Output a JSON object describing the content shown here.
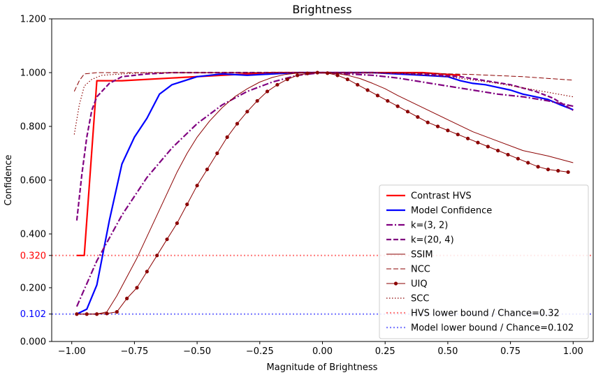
{
  "chart_data": {
    "type": "line",
    "title": "Brightness",
    "xlabel": "Magnitude of Brightness",
    "ylabel": "Confidence",
    "xlim": [
      -1.08,
      1.08
    ],
    "ylim": [
      0.0,
      1.2
    ],
    "xticks": [
      -1.0,
      -0.75,
      -0.5,
      -0.25,
      0.0,
      0.25,
      0.5,
      0.75,
      1.0
    ],
    "xtick_labels": [
      "−1.00",
      "−0.75",
      "−0.50",
      "−0.25",
      "0.00",
      "0.25",
      "0.50",
      "0.75",
      "1.00"
    ],
    "yticks": [
      0.0,
      0.102,
      0.2,
      0.32,
      0.4,
      0.6,
      0.8,
      1.0,
      1.2
    ],
    "ytick_labels": [
      "0.000",
      "0.102",
      "0.200",
      "0.320",
      "0.400",
      "0.600",
      "0.800",
      "1.000",
      "1.200"
    ],
    "ytick_colors": [
      "#000000",
      "#0000ff",
      "#000000",
      "#ff0000",
      "#000000",
      "#000000",
      "#000000",
      "#000000",
      "#000000"
    ],
    "grid": false,
    "legend_position": "bottom-right",
    "series": [
      {
        "name": "Contrast HVS",
        "color": "#ff0000",
        "style": "solid",
        "width": 2.2,
        "x": [
          -0.98,
          -0.95,
          -0.9,
          -0.88,
          -0.8,
          -0.6,
          -0.4,
          -0.2,
          0.0,
          0.2,
          0.4,
          0.55
        ],
        "y": [
          0.32,
          0.32,
          0.97,
          0.97,
          0.97,
          0.98,
          0.99,
          1.0,
          1.0,
          1.0,
          1.0,
          0.99
        ]
      },
      {
        "name": "Model Confidence",
        "color": "#0000ff",
        "style": "solid",
        "width": 2.2,
        "x": [
          -0.98,
          -0.94,
          -0.9,
          -0.85,
          -0.8,
          -0.75,
          -0.7,
          -0.65,
          -0.6,
          -0.55,
          -0.5,
          -0.45,
          -0.4,
          -0.3,
          -0.2,
          -0.1,
          0.0,
          0.1,
          0.2,
          0.3,
          0.4,
          0.5,
          0.55,
          0.6,
          0.65,
          0.7,
          0.75,
          0.8,
          0.85,
          0.9,
          0.95,
          1.0
        ],
        "y": [
          0.102,
          0.12,
          0.21,
          0.45,
          0.66,
          0.76,
          0.83,
          0.92,
          0.955,
          0.97,
          0.985,
          0.99,
          0.995,
          0.99,
          0.995,
          1.0,
          1.0,
          1.0,
          1.0,
          0.995,
          0.99,
          0.985,
          0.97,
          0.96,
          0.955,
          0.945,
          0.935,
          0.92,
          0.91,
          0.9,
          0.88,
          0.862
        ]
      },
      {
        "name": "k=(3, 2)",
        "color": "#800080",
        "style": "dashdot",
        "width": 2.2,
        "x": [
          -0.98,
          -0.9,
          -0.8,
          -0.7,
          -0.6,
          -0.5,
          -0.4,
          -0.3,
          -0.2,
          -0.1,
          0.0,
          0.1,
          0.2,
          0.3,
          0.4,
          0.5,
          0.6,
          0.7,
          0.8,
          0.9,
          1.0
        ],
        "y": [
          0.13,
          0.3,
          0.47,
          0.61,
          0.72,
          0.81,
          0.88,
          0.93,
          0.965,
          0.99,
          1.0,
          0.995,
          0.99,
          0.98,
          0.965,
          0.95,
          0.935,
          0.92,
          0.91,
          0.895,
          0.875
        ]
      },
      {
        "name": "k=(20, 4)",
        "color": "#800080",
        "style": "dashed",
        "width": 2.2,
        "x": [
          -0.98,
          -0.96,
          -0.94,
          -0.92,
          -0.9,
          -0.85,
          -0.8,
          -0.7,
          -0.6,
          -0.4,
          -0.2,
          0.0,
          0.2,
          0.4,
          0.55,
          0.65,
          0.75,
          0.85,
          0.92,
          1.0
        ],
        "y": [
          0.45,
          0.62,
          0.76,
          0.86,
          0.91,
          0.96,
          0.985,
          0.995,
          1.0,
          1.0,
          1.0,
          1.0,
          1.0,
          0.995,
          0.985,
          0.97,
          0.955,
          0.93,
          0.905,
          0.86
        ]
      },
      {
        "name": "SSIM",
        "color": "#8b0000",
        "style": "solid",
        "width": 1.0,
        "x": [
          -0.98,
          -0.9,
          -0.86,
          -0.82,
          -0.78,
          -0.74,
          -0.7,
          -0.66,
          -0.62,
          -0.58,
          -0.54,
          -0.5,
          -0.45,
          -0.4,
          -0.35,
          -0.3,
          -0.25,
          -0.2,
          -0.15,
          -0.1,
          -0.05,
          0.0,
          0.05,
          0.1,
          0.15,
          0.2,
          0.25,
          0.3,
          0.4,
          0.5,
          0.6,
          0.7,
          0.8,
          0.9,
          1.0
        ],
        "y": [
          0.102,
          0.102,
          0.11,
          0.17,
          0.24,
          0.31,
          0.39,
          0.47,
          0.55,
          0.63,
          0.7,
          0.76,
          0.82,
          0.87,
          0.91,
          0.94,
          0.965,
          0.982,
          0.993,
          0.998,
          1.0,
          1.0,
          0.998,
          0.99,
          0.978,
          0.96,
          0.94,
          0.915,
          0.87,
          0.825,
          0.78,
          0.745,
          0.71,
          0.69,
          0.665
        ]
      },
      {
        "name": "NCC",
        "color": "#8b0000",
        "style": "dashed",
        "width": 1.0,
        "x": [
          -0.99,
          -0.97,
          -0.95,
          -0.9,
          -0.8,
          -0.6,
          -0.4,
          -0.2,
          0.0,
          0.2,
          0.4,
          0.6,
          0.8,
          1.0
        ],
        "y": [
          0.93,
          0.97,
          0.995,
          1.0,
          1.0,
          1.0,
          1.0,
          1.0,
          1.0,
          1.0,
          0.998,
          0.993,
          0.985,
          0.972
        ]
      },
      {
        "name": "UIQ",
        "color": "#8b0000",
        "style": "solid",
        "width": 1.0,
        "marker": "circle",
        "x": [
          -0.98,
          -0.94,
          -0.9,
          -0.86,
          -0.82,
          -0.78,
          -0.74,
          -0.7,
          -0.66,
          -0.62,
          -0.58,
          -0.54,
          -0.5,
          -0.46,
          -0.42,
          -0.38,
          -0.34,
          -0.3,
          -0.26,
          -0.22,
          -0.18,
          -0.14,
          -0.1,
          -0.06,
          -0.02,
          0.02,
          0.06,
          0.1,
          0.14,
          0.18,
          0.22,
          0.26,
          0.3,
          0.34,
          0.38,
          0.42,
          0.46,
          0.5,
          0.54,
          0.58,
          0.62,
          0.66,
          0.7,
          0.74,
          0.78,
          0.82,
          0.86,
          0.9,
          0.94,
          0.98
        ],
        "y": [
          0.102,
          0.102,
          0.102,
          0.104,
          0.11,
          0.16,
          0.2,
          0.26,
          0.32,
          0.38,
          0.44,
          0.51,
          0.58,
          0.64,
          0.7,
          0.76,
          0.81,
          0.855,
          0.895,
          0.93,
          0.955,
          0.975,
          0.99,
          0.997,
          1.0,
          0.998,
          0.99,
          0.975,
          0.955,
          0.935,
          0.915,
          0.895,
          0.875,
          0.855,
          0.835,
          0.815,
          0.8,
          0.785,
          0.77,
          0.755,
          0.74,
          0.725,
          0.71,
          0.695,
          0.68,
          0.665,
          0.65,
          0.64,
          0.635,
          0.63
        ]
      },
      {
        "name": "SCC",
        "color": "#8b0000",
        "style": "dotted",
        "width": 1.2,
        "x": [
          -0.99,
          -0.97,
          -0.95,
          -0.92,
          -0.88,
          -0.8,
          -0.7,
          -0.5,
          -0.3,
          0.0,
          0.3,
          0.5,
          0.7,
          0.85,
          1.0
        ],
        "y": [
          0.77,
          0.88,
          0.95,
          0.975,
          0.99,
          0.995,
          1.0,
          1.0,
          1.0,
          1.0,
          0.998,
          0.985,
          0.96,
          0.935,
          0.91
        ]
      }
    ],
    "hlines": [
      {
        "name": "HVS lower bound / Chance=0.32",
        "y": 0.32,
        "color": "#ff8080",
        "style": "dotted"
      },
      {
        "name": "Model lower bound / Chance=0.102",
        "y": 0.102,
        "color": "#8080ff",
        "style": "dotted"
      }
    ]
  }
}
